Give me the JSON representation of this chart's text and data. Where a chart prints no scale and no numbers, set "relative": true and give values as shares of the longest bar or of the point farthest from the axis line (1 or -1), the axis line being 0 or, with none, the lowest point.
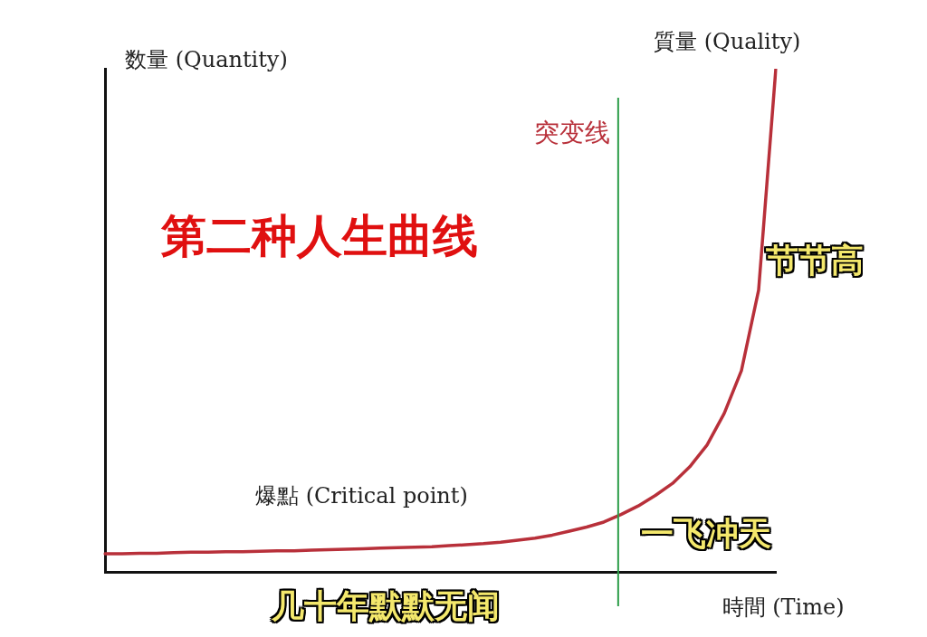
{
  "chart_data": {
    "type": "line",
    "title": "第二种人生曲线",
    "xlabel": "時間 (Time)",
    "ylabel": "数量 (Quantity)",
    "relative": true,
    "legend": false,
    "marker": "none",
    "line_style": "solid",
    "categories": [
      null,
      null,
      null,
      null,
      null,
      null,
      null,
      null,
      null,
      null,
      null,
      null,
      null,
      null,
      null,
      null,
      null,
      null,
      null,
      null,
      null,
      null,
      null,
      null,
      null,
      null,
      null,
      null,
      null,
      null,
      null,
      null,
      null,
      null,
      null,
      null,
      null,
      null,
      null,
      null
    ],
    "series": [
      {
        "color": "#b8303a",
        "values": [
          0.036,
          0.036,
          0.037,
          0.037,
          0.038,
          0.039,
          0.039,
          0.04,
          0.04,
          0.041,
          0.042,
          0.042,
          0.043,
          0.044,
          0.045,
          0.046,
          0.047,
          0.048,
          0.049,
          0.05,
          0.052,
          0.054,
          0.056,
          0.059,
          0.063,
          0.067,
          0.073,
          0.081,
          0.089,
          0.099,
          0.114,
          0.131,
          0.152,
          0.176,
          0.209,
          0.252,
          0.315,
          0.4,
          0.56,
          1
        ]
      }
    ],
    "annotations": [
      "質量 (Quality)",
      "爆點 (Critical point)",
      "节节高",
      "一飞冲天",
      "几十年默默无闻",
      "突变线"
    ]
  }
}
